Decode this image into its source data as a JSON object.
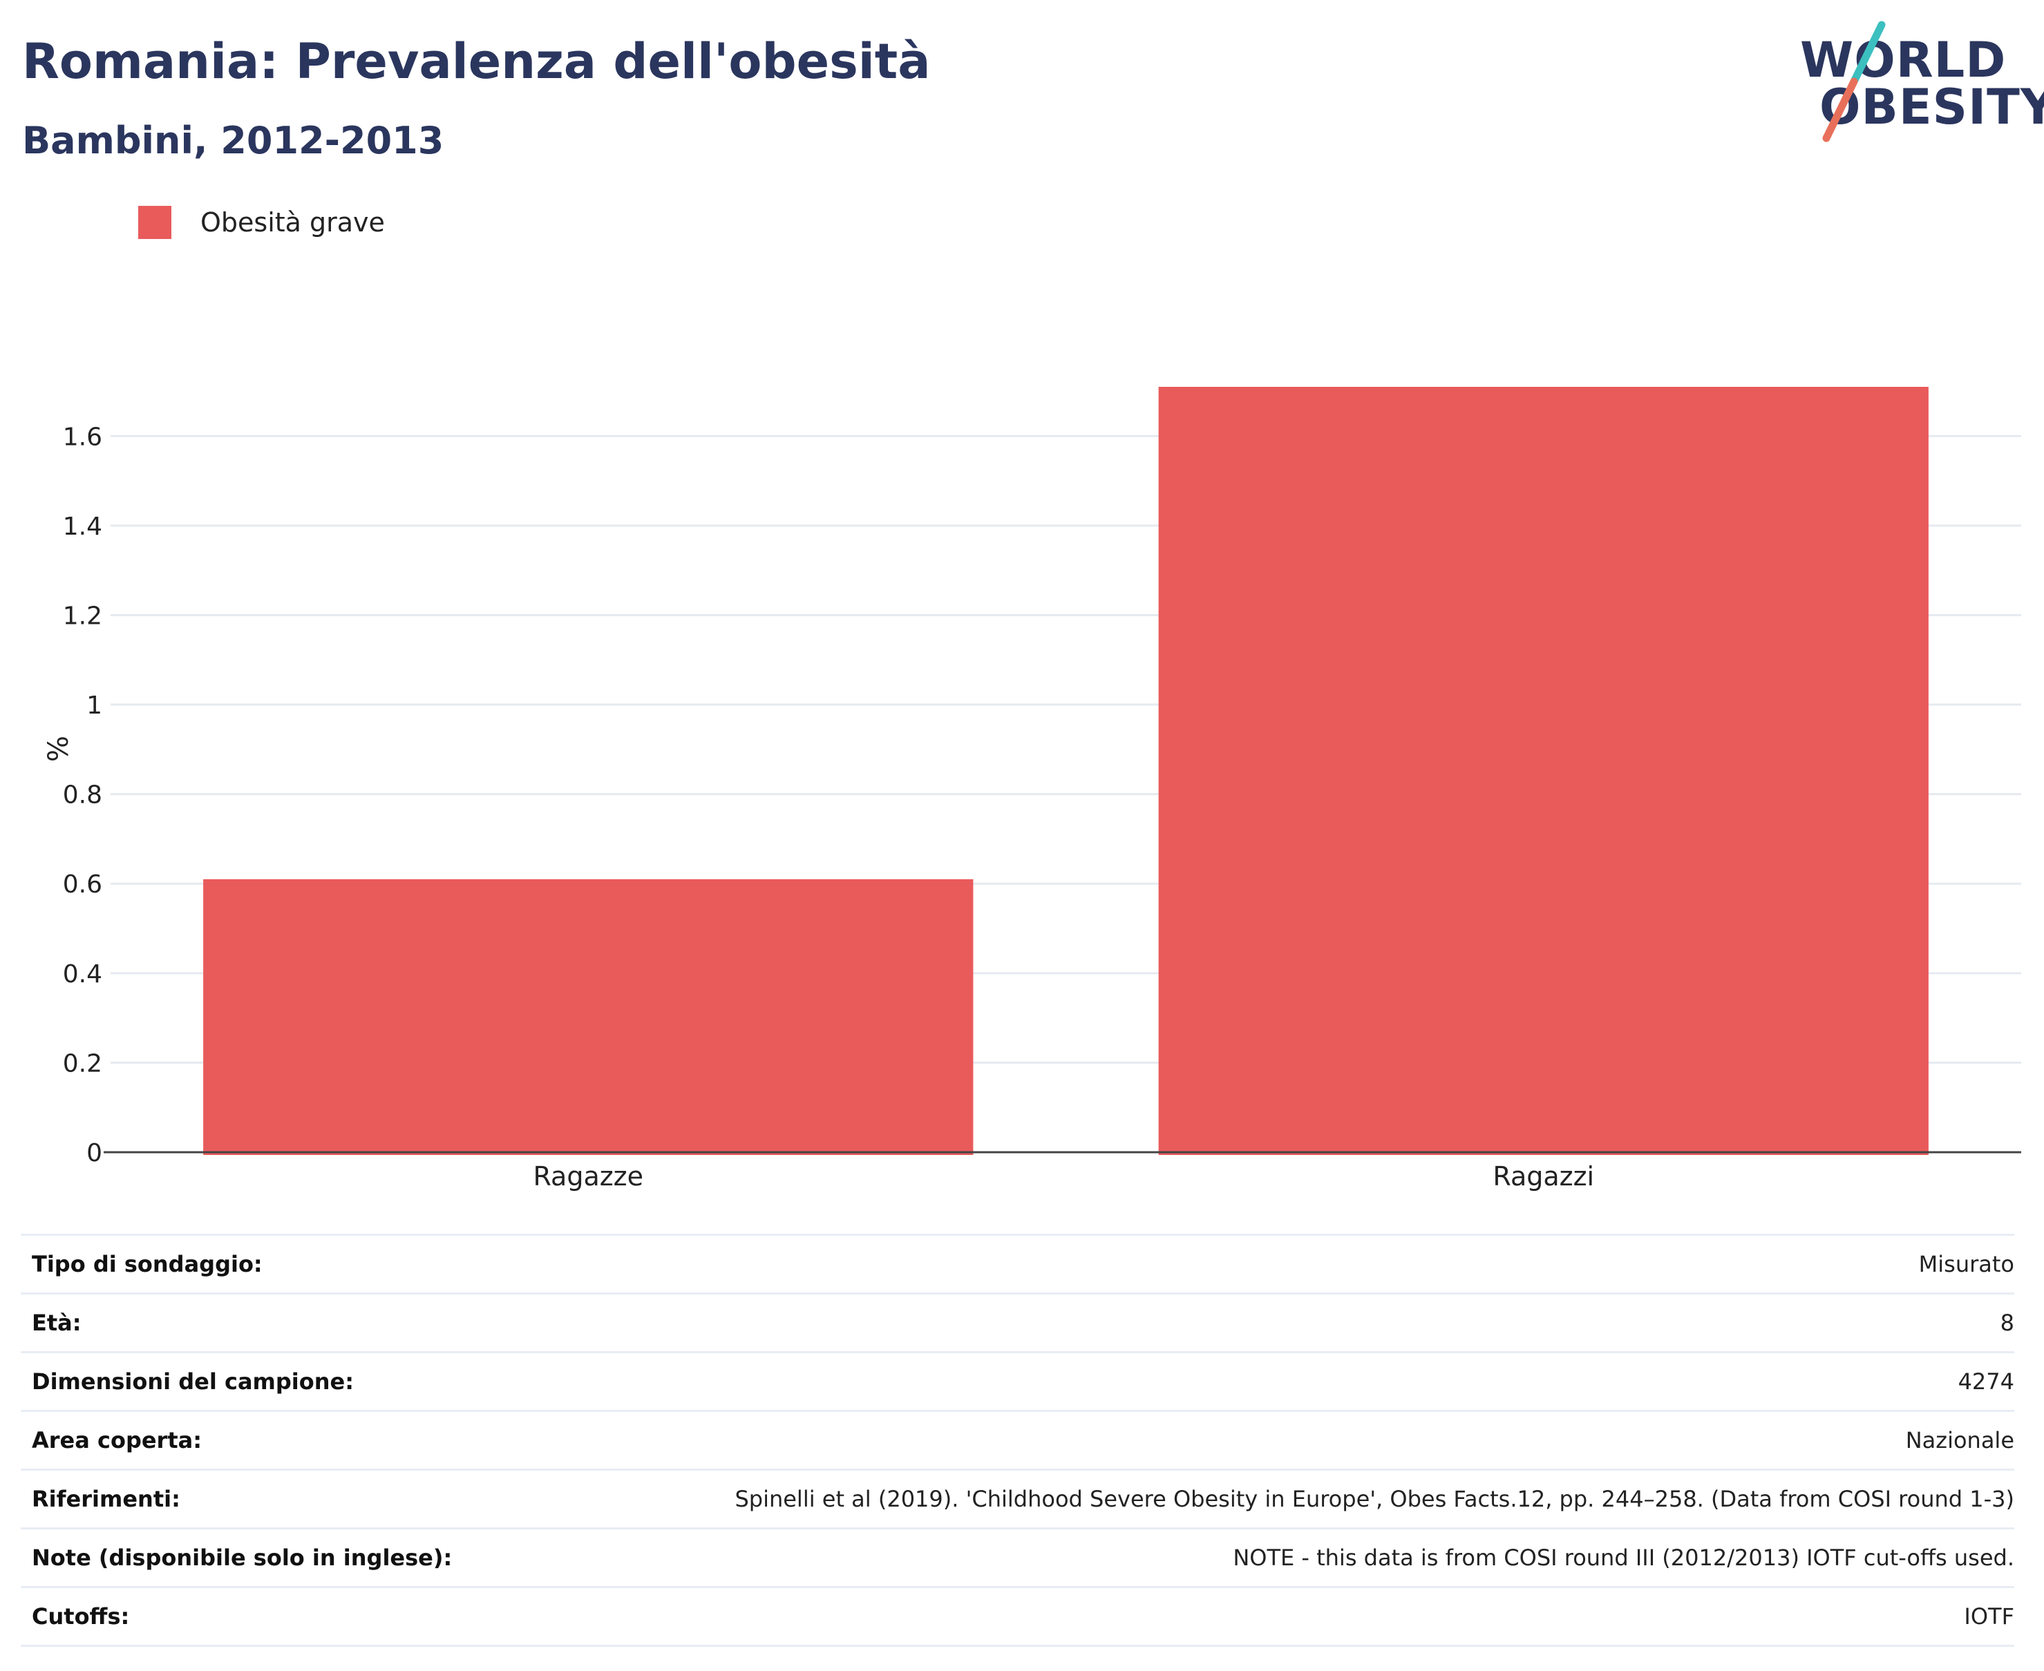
{
  "header": {
    "title": "Romania: Prevalenza dell'obesità",
    "subtitle": "Bambini, 2012-2013"
  },
  "logo": {
    "line1": "WORLD",
    "line2": "OBESITY",
    "colors": {
      "text": "#2b365e",
      "slash_top": "#3cbfbf",
      "slash_bottom": "#e8705a"
    }
  },
  "chart_data": {
    "type": "bar",
    "categories": [
      "Ragazze",
      "Ragazzi"
    ],
    "series": [
      {
        "name": "Obesità grave",
        "values": [
          0.61,
          1.71
        ],
        "color": "#e95b5b"
      }
    ],
    "ylabel": "%",
    "xlabel": "",
    "ylim": [
      0,
      1.71
    ],
    "yticks": [
      0,
      0.2,
      0.4,
      0.6,
      0.8,
      1,
      1.2,
      1.4,
      1.6
    ],
    "ytick_labels": [
      "0",
      "0.2",
      "0.4",
      "0.6",
      "0.8",
      "1",
      "1.2",
      "1.4",
      "1.6"
    ],
    "grid": true,
    "legend_position": "top-left"
  },
  "meta": [
    {
      "key": "Tipo di sondaggio:",
      "value": "Misurato"
    },
    {
      "key": "Età:",
      "value": "8"
    },
    {
      "key": "Dimensioni del campione:",
      "value": "4274"
    },
    {
      "key": "Area coperta:",
      "value": "Nazionale"
    },
    {
      "key": "Riferimenti:",
      "value": "Spinelli et al (2019). 'Childhood Severe Obesity in Europe', Obes Facts.12, pp. 244–258. (Data from COSI round 1-3)"
    },
    {
      "key": "Note (disponibile solo in inglese):",
      "value": "NOTE - this data is from COSI round III (2012/2013) IOTF cut-offs used."
    },
    {
      "key": "Cutoffs:",
      "value": "IOTF"
    }
  ]
}
